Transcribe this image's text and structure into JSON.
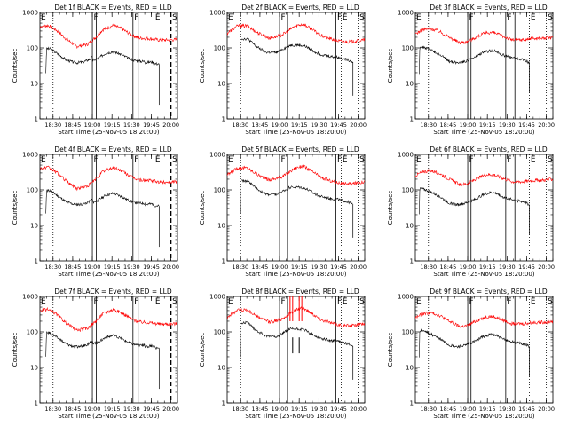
{
  "chart_data": [
    {
      "type": "line",
      "title": "Det 1f BLACK = Events, RED = LLD",
      "xlabel": "Start Time (25-Nov-05 18:20:00)",
      "ylabel": "Counts/sec",
      "variant": "A"
    },
    {
      "type": "line",
      "title": "Det 2f BLACK = Events, RED = LLD",
      "xlabel": "Start Time (25-Nov-05 18:20:00)",
      "ylabel": "Counts/sec",
      "variant": "B"
    },
    {
      "type": "line",
      "title": "Det 3f BLACK = Events, RED = LLD",
      "xlabel": "Start Time (25-Nov-05 18:20:00)",
      "ylabel": "Counts/sec",
      "variant": "C"
    },
    {
      "type": "line",
      "title": "Det 4f BLACK = Events, RED = LLD",
      "xlabel": "Start Time (25-Nov-05 18:20:00)",
      "ylabel": "Counts/sec",
      "variant": "A"
    },
    {
      "type": "line",
      "title": "Det 5f BLACK = Events, RED = LLD",
      "xlabel": "Start Time (25-Nov-05 18:20:00)",
      "ylabel": "Counts/sec",
      "variant": "B"
    },
    {
      "type": "line",
      "title": "Det 6f BLACK = Events, RED = LLD",
      "xlabel": "Start Time (25-Nov-05 18:20:00)",
      "ylabel": "Counts/sec",
      "variant": "C"
    },
    {
      "type": "line",
      "title": "Det 7f BLACK = Events, RED = LLD",
      "xlabel": "Start Time (25-Nov-05 18:20:00)",
      "ylabel": "Counts/sec",
      "variant": "A"
    },
    {
      "type": "line",
      "title": "Det 8f BLACK = Events, RED = LLD",
      "xlabel": "Start Time (25-Nov-05 18:20:00)",
      "ylabel": "Counts/sec",
      "variant": "B",
      "spikes": true
    },
    {
      "type": "line",
      "title": "Det 9f BLACK = Events, RED = LLD",
      "xlabel": "Start Time (25-Nov-05 18:20:00)",
      "ylabel": "Counts/sec",
      "variant": "C"
    }
  ],
  "common": {
    "yscale": "log",
    "ylim": [
      1,
      1000
    ],
    "yticks": [
      {
        "v": 1,
        "label": "1"
      },
      {
        "v": 10,
        "label": "10"
      },
      {
        "v": 100,
        "label": "100"
      },
      {
        "v": 1000,
        "label": "1000"
      }
    ],
    "xlim_min": [
      0,
      105
    ],
    "xticks": [
      {
        "m": 10,
        "label": "18:30"
      },
      {
        "m": 25,
        "label": "18:45"
      },
      {
        "m": 40,
        "label": "19:00"
      },
      {
        "m": 55,
        "label": "19:15"
      },
      {
        "m": 70,
        "label": "19:30"
      },
      {
        "m": 85,
        "label": "19:45"
      },
      {
        "m": 100,
        "label": "20:00"
      }
    ],
    "colors": {
      "events": "#000000",
      "lld": "#ff0000",
      "axes": "#000000"
    }
  },
  "variants": {
    "A": {
      "events_start": 4.5,
      "events_end": 91.0,
      "lld": [
        [
          0,
          400
        ],
        [
          6,
          430
        ],
        [
          12,
          330
        ],
        [
          20,
          180
        ],
        [
          28,
          110
        ],
        [
          36,
          125
        ],
        [
          42,
          190
        ],
        [
          48,
          330
        ],
        [
          56,
          430
        ],
        [
          63,
          340
        ],
        [
          70,
          230
        ],
        [
          76,
          190
        ],
        [
          83,
          185
        ],
        [
          92,
          165
        ],
        [
          100,
          168
        ],
        [
          105,
          172
        ]
      ],
      "events": [
        [
          4.5,
          20
        ],
        [
          5.0,
          95
        ],
        [
          8,
          95
        ],
        [
          13,
          70
        ],
        [
          20,
          46
        ],
        [
          27,
          38
        ],
        [
          33,
          40
        ],
        [
          38,
          48
        ],
        [
          40,
          55
        ],
        [
          40.5,
          45
        ],
        [
          44,
          50
        ],
        [
          50,
          70
        ],
        [
          56,
          80
        ],
        [
          62,
          65
        ],
        [
          68,
          50
        ],
        [
          72,
          45
        ],
        [
          77,
          42
        ],
        [
          80,
          42
        ],
        [
          80.5,
          38
        ],
        [
          84,
          40
        ],
        [
          86,
          40
        ],
        [
          86.5,
          38
        ],
        [
          88,
          36
        ],
        [
          91,
          35
        ]
      ],
      "drops": [
        [
          91,
          2.5
        ]
      ],
      "markers": [
        {
          "type": "dotted",
          "m": 10
        },
        {
          "type": "solid",
          "m": 40,
          "label": "F"
        },
        {
          "type": "solid",
          "m": 43
        },
        {
          "type": "solid",
          "m": 71,
          "label": "F"
        },
        {
          "type": "solid",
          "m": 75
        },
        {
          "type": "dotted",
          "m": 87,
          "label": "E"
        },
        {
          "type": "dashed",
          "m": 100,
          "label": "S"
        }
      ],
      "left_label": "E"
    },
    "B": {
      "events_start": 10.0,
      "events_end": 96.0,
      "lld": [
        [
          0,
          260
        ],
        [
          8,
          420
        ],
        [
          15,
          420
        ],
        [
          24,
          260
        ],
        [
          32,
          190
        ],
        [
          40,
          220
        ],
        [
          44,
          260
        ],
        [
          52,
          420
        ],
        [
          58,
          470
        ],
        [
          65,
          330
        ],
        [
          72,
          220
        ],
        [
          80,
          175
        ],
        [
          88,
          150
        ],
        [
          96,
          150
        ],
        [
          105,
          170
        ]
      ],
      "events": [
        [
          10,
          20
        ],
        [
          10.4,
          180
        ],
        [
          16,
          180
        ],
        [
          22,
          110
        ],
        [
          30,
          75
        ],
        [
          38,
          75
        ],
        [
          42,
          90
        ],
        [
          48,
          120
        ],
        [
          55,
          120
        ],
        [
          60,
          110
        ],
        [
          66,
          80
        ],
        [
          72,
          65
        ],
        [
          78,
          58
        ],
        [
          84,
          55
        ],
        [
          88,
          50
        ],
        [
          90,
          48
        ],
        [
          93,
          45
        ],
        [
          96,
          40
        ]
      ],
      "drops": [
        [
          96,
          4.5
        ]
      ],
      "markers": [
        {
          "type": "dotted",
          "m": 10
        },
        {
          "type": "solid",
          "m": 40,
          "label": "F"
        },
        {
          "type": "solid",
          "m": 46
        },
        {
          "type": "solid",
          "m": 83,
          "label": "F"
        },
        {
          "type": "dotted",
          "m": 87,
          "label": "E"
        },
        {
          "type": "dotted",
          "m": 100,
          "label": "S"
        }
      ],
      "left_label": "E"
    },
    "C": {
      "events_start": 3.0,
      "events_end": 87.0,
      "lld": [
        [
          0,
          250
        ],
        [
          6,
          330
        ],
        [
          12,
          350
        ],
        [
          18,
          300
        ],
        [
          26,
          200
        ],
        [
          34,
          140
        ],
        [
          40,
          150
        ],
        [
          46,
          200
        ],
        [
          54,
          270
        ],
        [
          60,
          270
        ],
        [
          66,
          220
        ],
        [
          74,
          170
        ],
        [
          82,
          170
        ],
        [
          90,
          185
        ],
        [
          100,
          190
        ],
        [
          105,
          200
        ]
      ],
      "events": [
        [
          3,
          20
        ],
        [
          3.4,
          110
        ],
        [
          8,
          100
        ],
        [
          14,
          80
        ],
        [
          20,
          60
        ],
        [
          26,
          42
        ],
        [
          32,
          38
        ],
        [
          38,
          42
        ],
        [
          42,
          48
        ],
        [
          46,
          55
        ],
        [
          52,
          75
        ],
        [
          58,
          85
        ],
        [
          62,
          80
        ],
        [
          66,
          65
        ],
        [
          72,
          55
        ],
        [
          76,
          52
        ],
        [
          80,
          48
        ],
        [
          84,
          45
        ],
        [
          87,
          38
        ]
      ],
      "drops": [
        [
          87,
          5.5
        ]
      ],
      "markers": [
        {
          "type": "dotted",
          "m": 10
        },
        {
          "type": "solid",
          "m": 40,
          "label": "F"
        },
        {
          "type": "solid",
          "m": 42.5
        },
        {
          "type": "solid",
          "m": 69,
          "label": "F"
        },
        {
          "type": "solid",
          "m": 76
        },
        {
          "type": "dotted",
          "m": 87,
          "label": "E"
        },
        {
          "type": "dotted",
          "m": 100,
          "label": "S"
        }
      ],
      "left_label": "E"
    }
  }
}
